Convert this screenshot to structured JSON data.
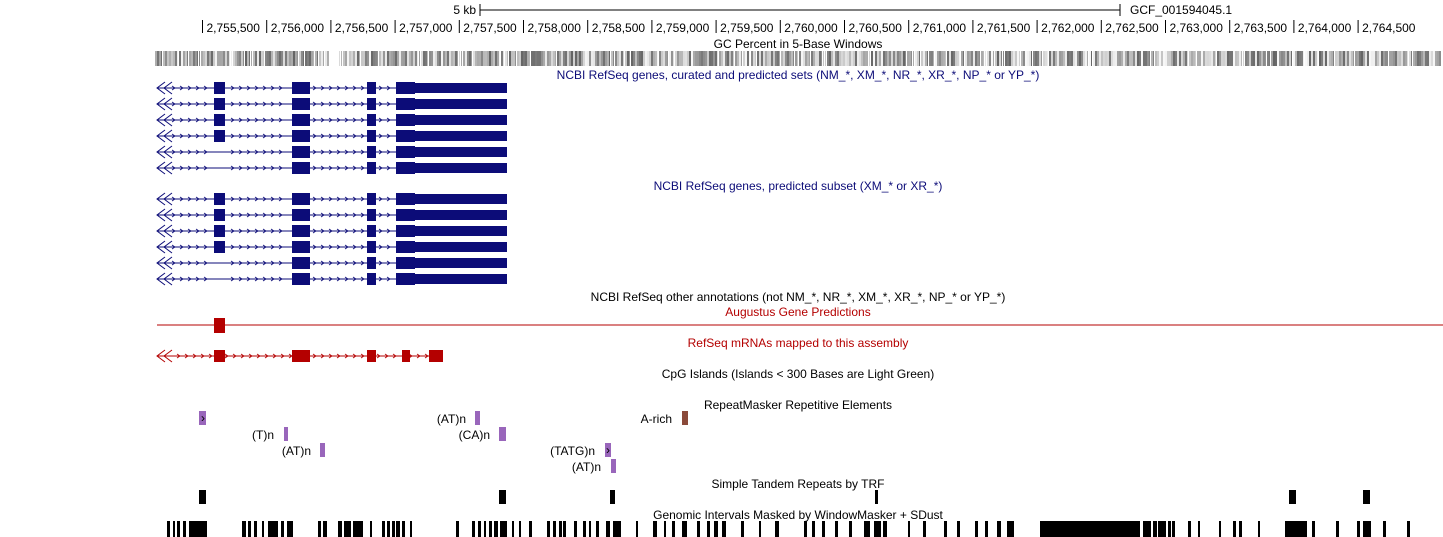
{
  "ruler": {
    "scale_label": "5 kb",
    "assembly": "GCF_001594045.1",
    "ticks": [
      "2,755,500",
      "2,756,000",
      "2,756,500",
      "2,757,000",
      "2,757,500",
      "2,758,000",
      "2,758,500",
      "2,759,000",
      "2,759,500",
      "2,760,000",
      "2,760,500",
      "2,761,000",
      "2,761,500",
      "2,762,000",
      "2,762,500",
      "2,763,000",
      "2,763,500",
      "2,764,000",
      "2,764,500"
    ]
  },
  "tracks": {
    "gc_percent": {
      "title": "GC Percent in 5-Base Windows"
    },
    "refseq_curated": {
      "title": "NCBI RefSeq genes, curated and predicted sets (NM_*, XM_*, NR_*, XR_*, NP_* or YP_*)",
      "color": "#0c0c78"
    },
    "refseq_predicted": {
      "title": "NCBI RefSeq genes, predicted subset (XM_* or XR_*)",
      "color": "#0c0c78"
    },
    "refseq_other": {
      "title": "NCBI RefSeq other annotations (not NM_*, NR_*, XM_*, XR_*, NP_* or YP_*)"
    },
    "augustus": {
      "title": "Augustus Gene Predictions",
      "color": "#b40000"
    },
    "refseq_mrna": {
      "title": "RefSeq mRNAs mapped to this assembly",
      "color": "#b40000"
    },
    "cpg": {
      "title": "CpG Islands (Islands < 300 Bases are Light Green)"
    },
    "repeatmasker": {
      "title": "RepeatMasker Repetitive Elements",
      "labels": [
        "(T)n",
        "(AT)n",
        "(AT)n",
        "(CA)n",
        "(TATG)n",
        "(AT)n",
        "A-rich"
      ],
      "color": "#9966bb",
      "arich_color": "#8b4a3a"
    },
    "trf": {
      "title": "Simple Tandem Repeats by TRF"
    },
    "windowmasker": {
      "title": "Genomic Intervals Masked by WindowMasker + SDust"
    }
  }
}
